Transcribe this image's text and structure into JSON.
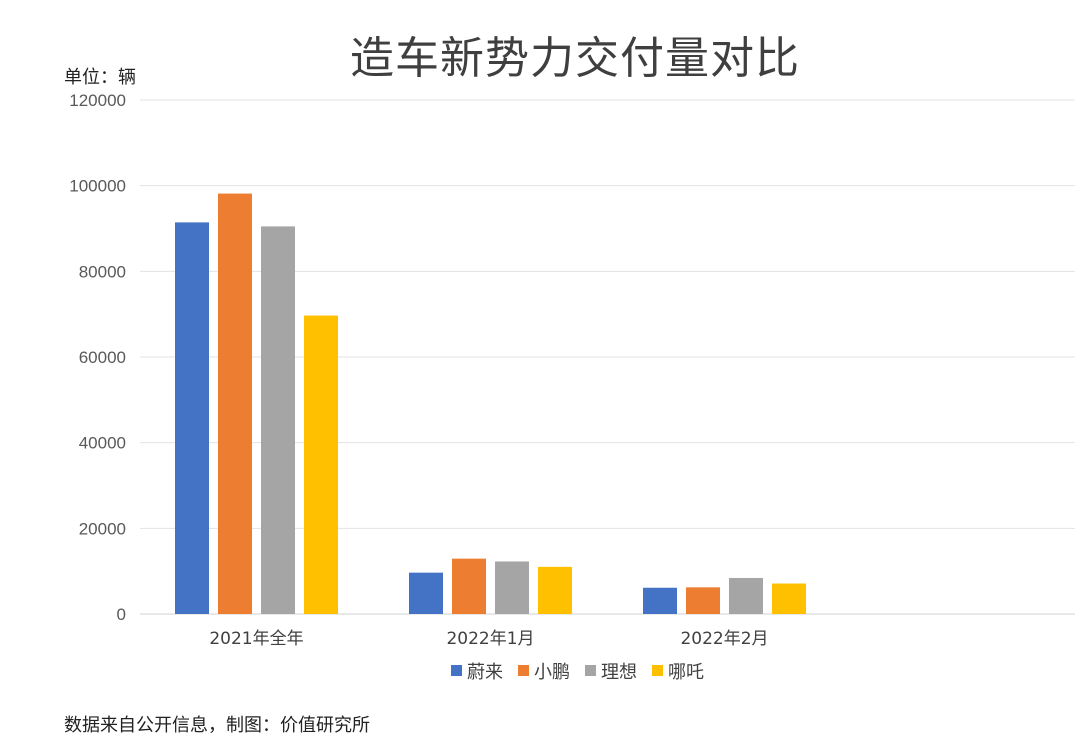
{
  "title": "造车新势力交付量对比",
  "unit_label": "单位：辆",
  "source_note": "数据来自公开信息，制图：价值研究所",
  "chart_data": {
    "type": "bar",
    "title": "造车新势力交付量对比",
    "ylabel": "单位：辆",
    "xlabel": "",
    "ylim": [
      0,
      120000
    ],
    "yticks": [
      0,
      20000,
      40000,
      60000,
      80000,
      100000,
      120000
    ],
    "grid": true,
    "legend_position": "bottom",
    "categories": [
      "2021年全年",
      "2022年1月",
      "2022年2月"
    ],
    "series": [
      {
        "name": "蔚来",
        "color": "#4472C4",
        "values": [
          91429,
          9652,
          6131
        ]
      },
      {
        "name": "小鹏",
        "color": "#ED7D31",
        "values": [
          98155,
          12922,
          6225
        ]
      },
      {
        "name": "理想",
        "color": "#A5A5A5",
        "values": [
          90491,
          12268,
          8414
        ]
      },
      {
        "name": "哪吒",
        "color": "#FFC000",
        "values": [
          69674,
          11009,
          7117
        ]
      }
    ]
  }
}
